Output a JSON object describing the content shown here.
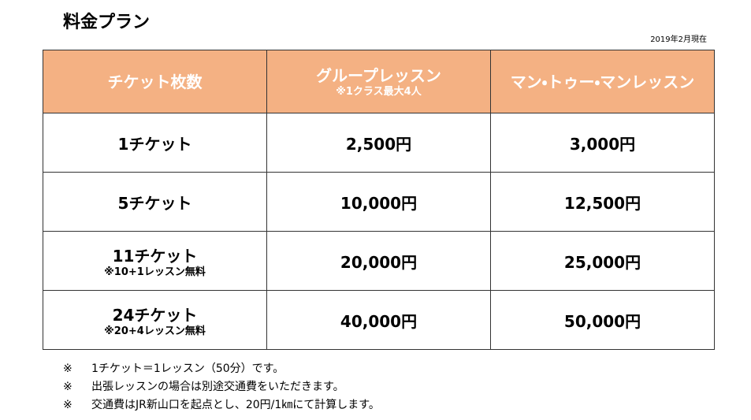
{
  "header": {
    "title": "料金プラン",
    "date_note": "2019年2月現在"
  },
  "table": {
    "columns": [
      {
        "text": "チケット枚数"
      },
      {
        "text": "グループレッスン",
        "note": "※1クラス最大4人"
      },
      {
        "text": "マン・トゥー・マンレッスン"
      }
    ],
    "rows": [
      {
        "label": "1チケット",
        "group": "2,500円",
        "private": "3,000円"
      },
      {
        "label": "5チケット",
        "group": "10,000円",
        "private": "12,500円"
      },
      {
        "label": "11チケット",
        "note": "※10+1レッスン無料",
        "group": "20,000円",
        "private": "25,000円"
      },
      {
        "label": "24チケット",
        "note": "※20+4レッスン無料",
        "group": "40,000円",
        "private": "50,000円"
      }
    ]
  },
  "notes": [
    {
      "mark": "※",
      "text": "1チケット＝1レッスン（50分）です。"
    },
    {
      "mark": "※",
      "text": "出張レッスンの場合は別途交通費をいただきます。"
    },
    {
      "mark": "※",
      "text": "交通費はJR新山口を起点とし、20円/1㎞にて計算します。"
    }
  ]
}
